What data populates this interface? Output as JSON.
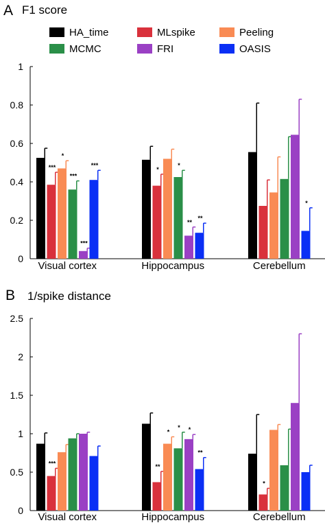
{
  "colors": {
    "HA_time": "#000000",
    "MLspike": "#d9313c",
    "Peeling": "#f98b54",
    "MCMC": "#2a8f48",
    "FRI": "#9a40c4",
    "OASIS": "#0a2ff5"
  },
  "legend": {
    "items": [
      "HA_time",
      "MLspike",
      "Peeling",
      "MCMC",
      "FRI",
      "OASIS"
    ]
  },
  "chart_data": [
    {
      "type": "bar",
      "panel_letter": "A",
      "title": "F1 score",
      "categories": [
        "Visual cortex",
        "Hippocampus",
        "Cerebellum"
      ],
      "ylim": [
        0,
        1
      ],
      "yticks": [
        0,
        0.2,
        0.4,
        0.6,
        0.8,
        1
      ],
      "ytick_labels": [
        "0",
        "0.2",
        "0.4",
        "0.6",
        "0.8",
        "1"
      ],
      "series": [
        {
          "name": "HA_time",
          "values": [
            0.525,
            0.515,
            0.555
          ],
          "errors": [
            0.05,
            0.07,
            0.255
          ],
          "stars": [
            "",
            "",
            ""
          ]
        },
        {
          "name": "MLspike",
          "values": [
            0.385,
            0.38,
            0.275
          ],
          "errors": [
            0.065,
            0.06,
            0.135
          ],
          "stars": [
            "***",
            "*",
            ""
          ]
        },
        {
          "name": "Peeling",
          "values": [
            0.47,
            0.52,
            0.345
          ],
          "errors": [
            0.04,
            0.05,
            0.185
          ],
          "stars": [
            "*",
            "",
            ""
          ]
        },
        {
          "name": "MCMC",
          "values": [
            0.36,
            0.425,
            0.415
          ],
          "errors": [
            0.045,
            0.035,
            0.22
          ],
          "stars": [
            "***",
            "*",
            ""
          ]
        },
        {
          "name": "FRI",
          "values": [
            0.04,
            0.12,
            0.645
          ],
          "errors": [
            0.015,
            0.045,
            0.185
          ],
          "stars": [
            "***",
            "**",
            ""
          ]
        },
        {
          "name": "OASIS",
          "values": [
            0.41,
            0.135,
            0.145
          ],
          "errors": [
            0.05,
            0.05,
            0.12
          ],
          "stars": [
            "***",
            "**",
            "*"
          ]
        }
      ]
    },
    {
      "type": "bar",
      "panel_letter": "B",
      "title": "1/spike distance",
      "categories": [
        "Visual cortex",
        "Hippocampus",
        "Cerebellum"
      ],
      "ylim": [
        0,
        2.5
      ],
      "yticks": [
        0,
        0.5,
        1,
        1.5,
        2,
        2.5
      ],
      "ytick_labels": [
        "0",
        "0.5",
        "1",
        "1.5",
        "2",
        "2.5"
      ],
      "series": [
        {
          "name": "HA_time",
          "values": [
            0.87,
            1.13,
            0.74
          ],
          "errors": [
            0.14,
            0.14,
            0.51
          ],
          "stars": [
            "",
            "",
            ""
          ]
        },
        {
          "name": "MLspike",
          "values": [
            0.45,
            0.37,
            0.21
          ],
          "errors": [
            0.1,
            0.14,
            0.08
          ],
          "stars": [
            "***",
            "**",
            "*"
          ]
        },
        {
          "name": "Peeling",
          "values": [
            0.76,
            0.87,
            1.05
          ],
          "errors": [
            0.1,
            0.09,
            0.07
          ],
          "stars": [
            "",
            "*",
            ""
          ]
        },
        {
          "name": "MCMC",
          "values": [
            0.94,
            0.81,
            0.59
          ],
          "errors": [
            0.06,
            0.21,
            0.47
          ],
          "stars": [
            "",
            "*",
            ""
          ]
        },
        {
          "name": "FRI",
          "values": [
            1.0,
            0.93,
            1.4
          ],
          "errors": [
            0.02,
            0.06,
            0.9
          ],
          "stars": [
            "",
            "*",
            ""
          ]
        },
        {
          "name": "OASIS",
          "values": [
            0.71,
            0.54,
            0.5
          ],
          "errors": [
            0.13,
            0.15,
            0.09
          ],
          "stars": [
            "",
            "**",
            ""
          ]
        }
      ]
    }
  ]
}
